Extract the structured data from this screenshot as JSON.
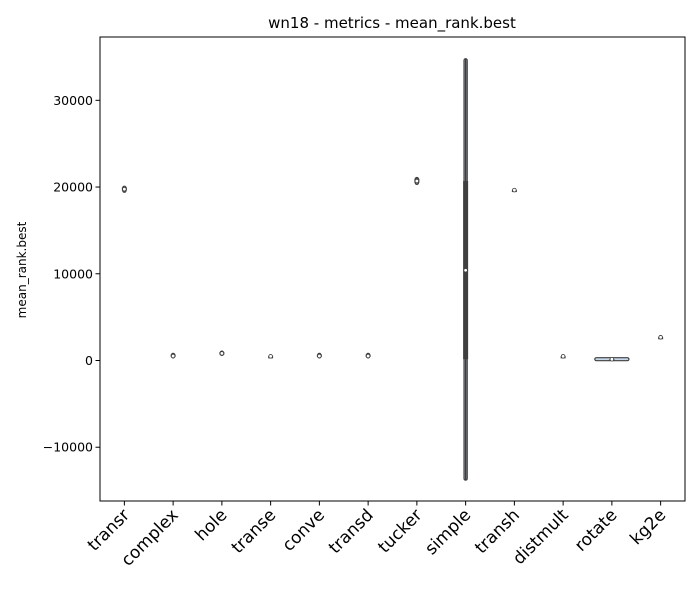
{
  "chart_data": {
    "type": "violin",
    "title": "wn18 - metrics - mean_rank.best",
    "xlabel": "",
    "ylabel": "mean_rank.best",
    "ylim": [
      -16200,
      37300
    ],
    "yticks": [
      -10000,
      0,
      10000,
      20000,
      30000
    ],
    "grid": false,
    "legend": "none",
    "colors": {
      "violin_fill": "#c4d6e8",
      "violin_edge": "#3f3f3f",
      "box": "#3f3f3f"
    },
    "categories": [
      "transr",
      "complex",
      "hole",
      "transe",
      "conve",
      "transd",
      "tucker",
      "simple",
      "transh",
      "distmult",
      "rotate",
      "kg2e"
    ],
    "groups": [
      {
        "name": "transr",
        "min": 19500,
        "q1": 19600,
        "median": 19750,
        "q3": 19950,
        "max": 20000,
        "violin_min": 19400,
        "violin_max": 20100,
        "width": 0.06
      },
      {
        "name": "complex",
        "min": 380,
        "q1": 420,
        "median": 520,
        "q3": 680,
        "max": 760,
        "violin_min": 300,
        "violin_max": 820,
        "width": 0.06
      },
      {
        "name": "hole",
        "min": 630,
        "q1": 680,
        "median": 820,
        "q3": 960,
        "max": 1020,
        "violin_min": 580,
        "violin_max": 1080,
        "width": 0.06
      },
      {
        "name": "transe",
        "min": 480,
        "q1": 480,
        "median": 480,
        "q3": 480,
        "max": 480,
        "violin_min": 440,
        "violin_max": 520,
        "width": 0.04
      },
      {
        "name": "conve",
        "min": 380,
        "q1": 420,
        "median": 520,
        "q3": 680,
        "max": 760,
        "violin_min": 300,
        "violin_max": 820,
        "width": 0.06
      },
      {
        "name": "transd",
        "min": 380,
        "q1": 420,
        "median": 520,
        "q3": 680,
        "max": 760,
        "violin_min": 300,
        "violin_max": 820,
        "width": 0.06
      },
      {
        "name": "tucker",
        "min": 20400,
        "q1": 20500,
        "median": 20700,
        "q3": 20950,
        "max": 21050,
        "violin_min": 20300,
        "violin_max": 21100,
        "width": 0.06
      },
      {
        "name": "simple",
        "min": -13800,
        "q1": 150,
        "median": 10400,
        "q3": 20700,
        "max": 34800,
        "violin_min": -13800,
        "violin_max": 34800,
        "width": 0.06
      },
      {
        "name": "transh",
        "min": 19650,
        "q1": 19650,
        "median": 19650,
        "q3": 19650,
        "max": 19650,
        "violin_min": 19610,
        "violin_max": 19690,
        "width": 0.04
      },
      {
        "name": "distmult",
        "min": 480,
        "q1": 480,
        "median": 480,
        "q3": 480,
        "max": 480,
        "violin_min": 440,
        "violin_max": 520,
        "width": 0.04
      },
      {
        "name": "rotate",
        "min": 100,
        "q1": 120,
        "median": 150,
        "q3": 180,
        "max": 200,
        "violin_min": 60,
        "violin_max": 240,
        "width": 0.7
      },
      {
        "name": "kg2e",
        "min": 2680,
        "q1": 2680,
        "median": 2680,
        "q3": 2680,
        "max": 2680,
        "violin_min": 2640,
        "violin_max": 2720,
        "width": 0.04
      }
    ]
  }
}
